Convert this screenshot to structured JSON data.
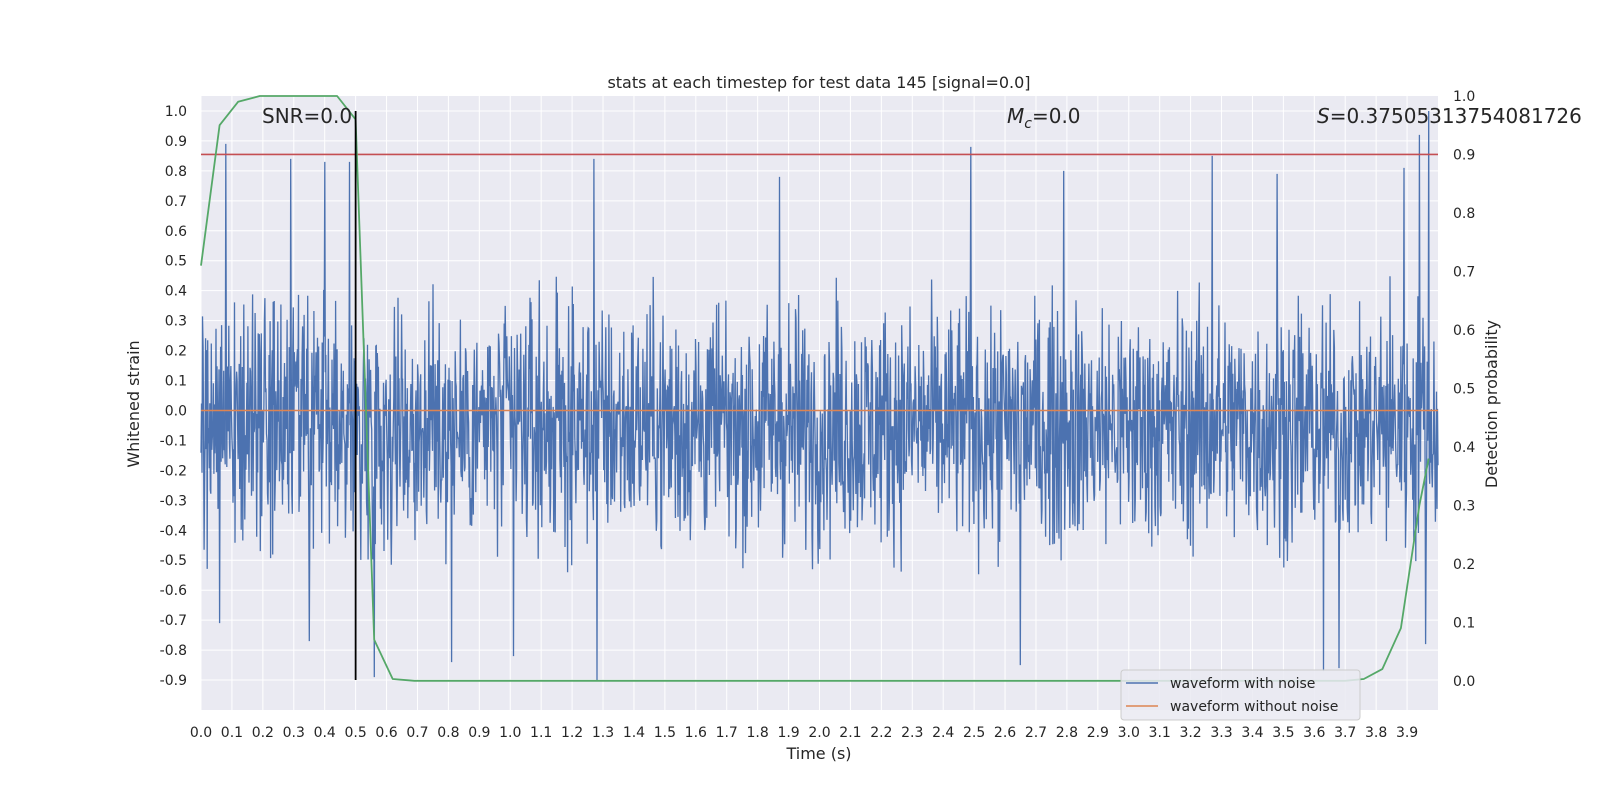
{
  "chart_data": {
    "type": "line",
    "title": "stats at each timestep for test data 145 [signal=0.0]",
    "xlabel": "Time (s)",
    "ylabel": "Whitened strain",
    "y2label": "Detection probability",
    "xlim": [
      0.0,
      4.0
    ],
    "ylim": [
      -1.0,
      1.05
    ],
    "y2lim": [
      -0.05,
      1.0
    ],
    "x_ticks": [
      "0.0",
      "0.1",
      "0.2",
      "0.3",
      "0.4",
      "0.5",
      "0.6",
      "0.7",
      "0.8",
      "0.9",
      "1.0",
      "1.1",
      "1.2",
      "1.3",
      "1.4",
      "1.5",
      "1.6",
      "1.7",
      "1.8",
      "1.9",
      "2.0",
      "2.1",
      "2.2",
      "2.3",
      "2.4",
      "2.5",
      "2.6",
      "2.7",
      "2.8",
      "2.9",
      "3.0",
      "3.1",
      "3.2",
      "3.3",
      "3.4",
      "3.5",
      "3.6",
      "3.7",
      "3.8",
      "3.9"
    ],
    "y_ticks": [
      "1.0",
      "0.9",
      "0.8",
      "0.7",
      "0.6",
      "0.5",
      "0.4",
      "0.3",
      "0.2",
      "0.1",
      "0.0",
      "-0.1",
      "-0.2",
      "-0.3",
      "-0.4",
      "-0.5",
      "-0.6",
      "-0.7",
      "-0.8",
      "-0.9"
    ],
    "y2_ticks": [
      "1.0",
      "0.9",
      "0.8",
      "0.7",
      "0.6",
      "0.5",
      "0.4",
      "0.3",
      "0.2",
      "0.1",
      "0.0"
    ],
    "grid": true,
    "legend_position": "lower-right",
    "annotations": {
      "snr": "SNR=0.0",
      "mc_symbol": "M",
      "mc_subscript": "c",
      "mc_value": "=0.0",
      "s_symbol": "S",
      "s_value": "=0.37505313754081726"
    },
    "series": [
      {
        "name": "waveform with noise",
        "color": "#4c72b0",
        "description": "dense noisy strain trace spanning roughly -0.9 to 1.0",
        "envelope_upper": 0.45,
        "envelope_lower": -0.55,
        "peaks": [
          [
            0.08,
            0.89
          ],
          [
            0.29,
            0.84
          ],
          [
            0.4,
            0.83
          ],
          [
            0.48,
            0.83
          ],
          [
            1.27,
            0.84
          ],
          [
            1.87,
            0.78
          ],
          [
            2.49,
            0.88
          ],
          [
            2.79,
            0.8
          ],
          [
            3.27,
            0.85
          ],
          [
            3.48,
            0.79
          ],
          [
            3.89,
            0.81
          ],
          [
            3.94,
            0.92
          ],
          [
            3.97,
            1.0
          ]
        ],
        "troughs": [
          [
            0.06,
            -0.71
          ],
          [
            0.35,
            -0.77
          ],
          [
            0.56,
            -0.89
          ],
          [
            0.81,
            -0.84
          ],
          [
            1.01,
            -0.82
          ],
          [
            1.28,
            -0.9
          ],
          [
            2.65,
            -0.85
          ],
          [
            3.63,
            -0.87
          ],
          [
            3.68,
            -0.86
          ],
          [
            3.96,
            -0.78
          ]
        ]
      },
      {
        "name": "waveform without noise",
        "color": "#dd8452",
        "x": [
          0.0,
          4.0
        ],
        "y": [
          0.0,
          0.0
        ]
      },
      {
        "name": "detection probability",
        "axis": "right",
        "color": "#55a868",
        "x": [
          0.0,
          0.06,
          0.12,
          0.19,
          0.25,
          0.31,
          0.38,
          0.44,
          0.5,
          0.56,
          0.62,
          0.69,
          3.7,
          3.76,
          3.82,
          3.88,
          3.94,
          3.97
        ],
        "y": [
          0.71,
          0.95,
          0.99,
          1.0,
          1.0,
          1.0,
          1.0,
          1.0,
          0.96,
          0.07,
          0.003,
          0.0,
          0.0,
          0.003,
          0.02,
          0.09,
          0.3,
          0.38
        ]
      }
    ],
    "threshold": {
      "axis": "right",
      "value": 0.9,
      "color": "#c44e52"
    },
    "marker_line": {
      "x": 0.5,
      "y_from": -0.9,
      "y_to": 1.0,
      "color": "#000000"
    }
  }
}
